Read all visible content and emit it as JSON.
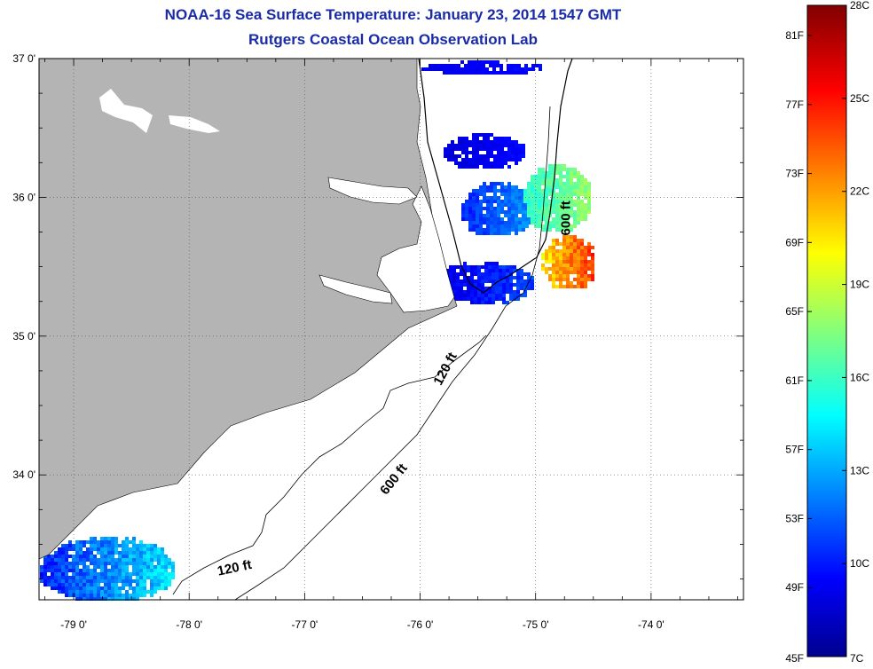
{
  "title": {
    "line1": "NOAA-16 Sea Surface Temperature:  January 23, 2014 1547 GMT",
    "line2": "Rutgers Coastal Ocean Observation Lab"
  },
  "map": {
    "lon_range": [
      -79.3,
      -73.2
    ],
    "lat_range": [
      33.1,
      37.0
    ],
    "lon_ticks": [
      {
        "value": -79,
        "label": "-79 0'"
      },
      {
        "value": -78,
        "label": "-78 0'"
      },
      {
        "value": -77,
        "label": "-77 0'"
      },
      {
        "value": -76,
        "label": "-76 0'"
      },
      {
        "value": -75,
        "label": "-75 0'"
      },
      {
        "value": -74,
        "label": "-74 0'"
      }
    ],
    "lat_ticks": [
      {
        "value": 37,
        "label": "37 0'"
      },
      {
        "value": 36,
        "label": "36 0'"
      },
      {
        "value": 35,
        "label": "35 0'"
      },
      {
        "value": 34,
        "label": "34 0'"
      }
    ],
    "land_color": "#b4b4b4",
    "gridlines": "dotted",
    "contour_labels": [
      {
        "text": "600 ft",
        "lon": -74.7,
        "lat": 35.85,
        "rotate": -90
      },
      {
        "text": "120 ft",
        "lon": -75.75,
        "lat": 34.75,
        "rotate": -62
      },
      {
        "text": "600 ft",
        "lon": -76.2,
        "lat": 33.95,
        "rotate": -52
      },
      {
        "text": "120 ft",
        "lon": -77.6,
        "lat": 33.3,
        "rotate": -12
      }
    ]
  },
  "colorbar": {
    "temp_range_c": [
      7,
      28
    ],
    "celsius_labels": [
      "28C",
      "25C",
      "22C",
      "19C",
      "16C",
      "13C",
      "10C",
      "7C"
    ],
    "fahrenheit_labels": [
      "81F",
      "77F",
      "73F",
      "69F",
      "65F",
      "61F",
      "57F",
      "53F",
      "49F",
      "45F"
    ],
    "colormap": [
      "#00008f",
      "#0000ff",
      "#00ffff",
      "#ffff00",
      "#ff0000",
      "#800000"
    ]
  }
}
